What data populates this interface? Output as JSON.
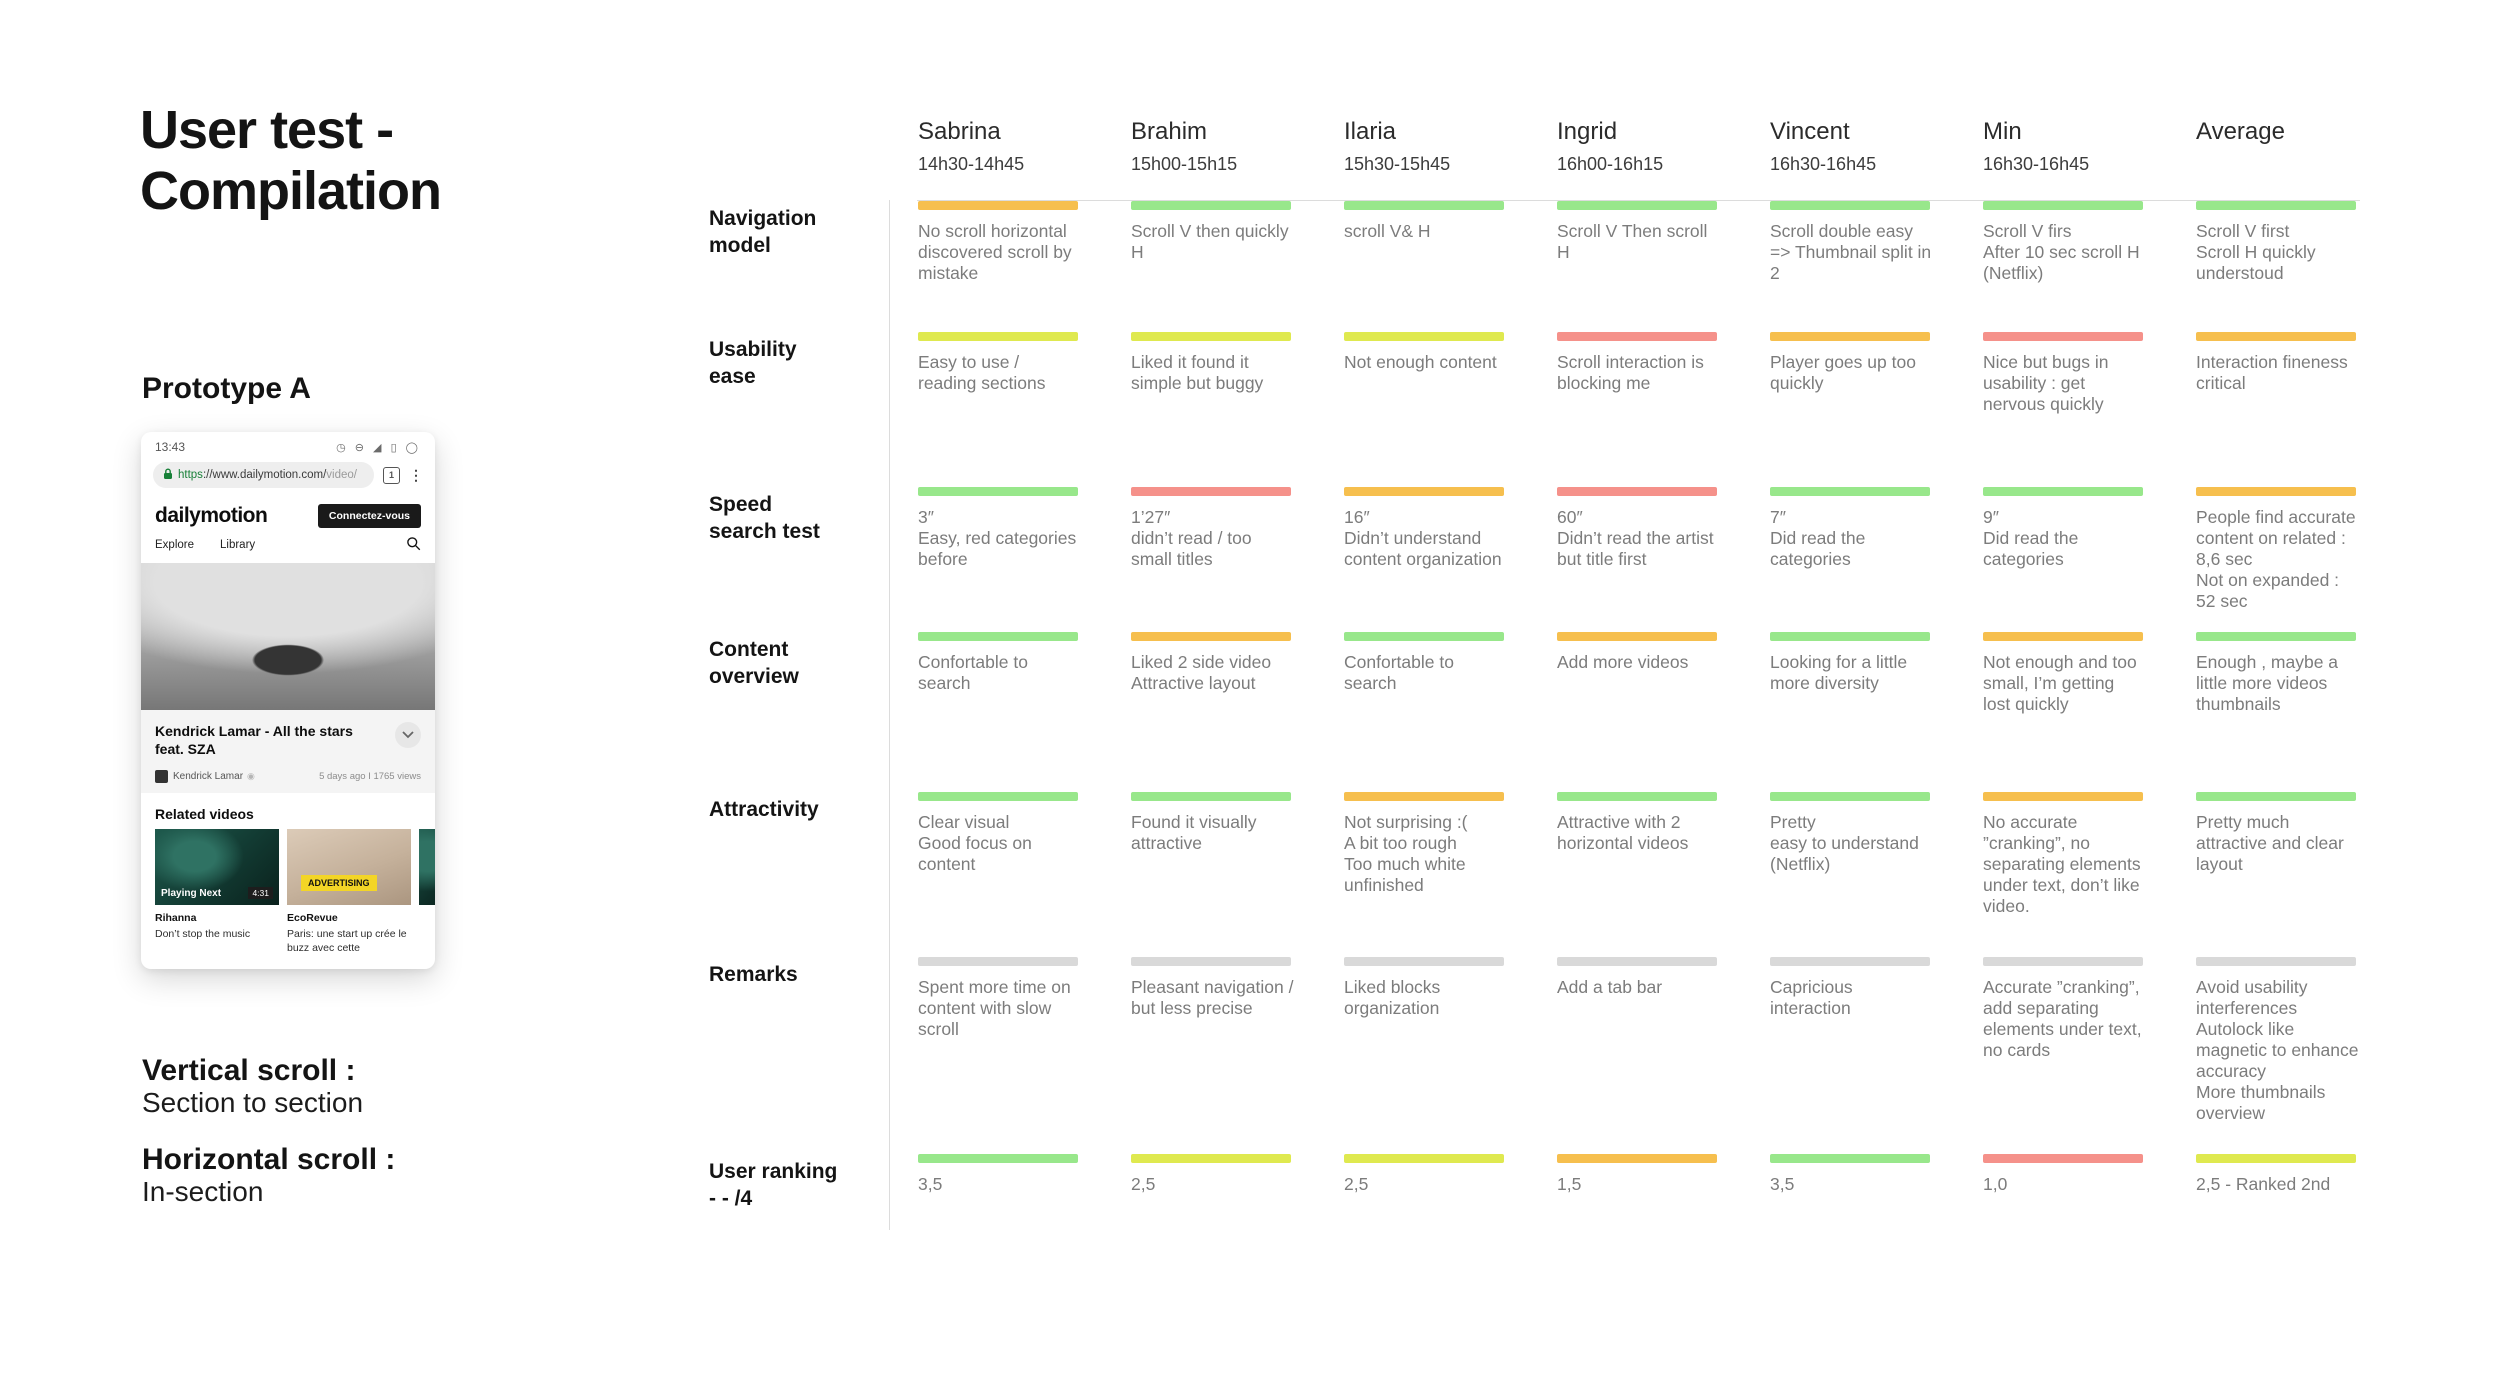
{
  "page": {
    "title": "User test -\nCompilation"
  },
  "left_panel": {
    "prototype_label": "Prototype A",
    "notes": [
      {
        "label": "Vertical scroll :",
        "value": "Section to section"
      },
      {
        "label": "Horizontal scroll :",
        "value": "In-section"
      }
    ],
    "phone": {
      "status_time": "13:43",
      "status_icons": "◷ ⊖ ◢ ▯ ◯",
      "url_scheme": "https",
      "url_host": "://www.dailymotion.com/",
      "url_path": "video/",
      "tab_count": "1",
      "menu_glyph": "⋮",
      "logo": "dailymotion",
      "login_button": "Connectez-vous",
      "nav": {
        "explore": "Explore",
        "library": "Library"
      },
      "video_title": "Kendrick Lamar - All the stars feat. SZA",
      "channel": "Kendrick Lamar",
      "meta": "5 days ago  I  1765 views",
      "related_heading": "Related videos",
      "related": [
        {
          "name": "Rihanna",
          "desc": "Don’t stop the music",
          "badge": "Playing Next",
          "duration": "4:31"
        },
        {
          "name": "EcoRevue",
          "desc": "Paris: une start up crée le buzz avec cette",
          "badge": "ADVERTISING",
          "duration": ""
        }
      ]
    }
  },
  "colors": {
    "green": "#98e78b",
    "yellow": "#dfe94f",
    "orange": "#f6bf4e",
    "red": "#f5918a",
    "gray": "#d9d9d9"
  },
  "table": {
    "columns": [
      {
        "name": "Sabrina",
        "time": "14h30-14h45"
      },
      {
        "name": "Brahim",
        "time": "15h00-15h15"
      },
      {
        "name": "Ilaria",
        "time": "15h30-15h45"
      },
      {
        "name": "Ingrid",
        "time": "16h00-16h15"
      },
      {
        "name": "Vincent",
        "time": "16h30-16h45"
      },
      {
        "name": "Min",
        "time": "16h30-16h45"
      },
      {
        "name": "Average",
        "time": ""
      }
    ],
    "rows": [
      {
        "label": "Navigation model",
        "cells": [
          {
            "color": "orange",
            "text": "No scroll horizontal discovered scroll by mistake"
          },
          {
            "color": "green",
            "text": "Scroll V then quickly H"
          },
          {
            "color": "green",
            "text": "scroll V& H"
          },
          {
            "color": "green",
            "text": "Scroll V Then scroll H"
          },
          {
            "color": "green",
            "text": "Scroll double easy\n=> Thumbnail split in 2"
          },
          {
            "color": "green",
            "text": "Scroll V firs\nAfter 10 sec scroll H (Netflix)"
          },
          {
            "color": "green",
            "text": "Scroll V first\nScroll H quickly understoud"
          }
        ]
      },
      {
        "label": "Usability ease",
        "cells": [
          {
            "color": "yellow",
            "text": "Easy to use / reading sections"
          },
          {
            "color": "yellow",
            "text": "Liked it found it simple but buggy"
          },
          {
            "color": "yellow",
            "text": "Not enough content"
          },
          {
            "color": "red",
            "text": "Scroll interaction is blocking me"
          },
          {
            "color": "orange",
            "text": "Player goes up too quickly"
          },
          {
            "color": "red",
            "text": "Nice but bugs in usability : get nervous quickly"
          },
          {
            "color": "orange",
            "text": "Interaction fineness critical"
          }
        ]
      },
      {
        "label": "Speed search test",
        "cells": [
          {
            "color": "green",
            "text": "3″\nEasy, red categories before"
          },
          {
            "color": "red",
            "text": "1’27″\ndidn’t read / too small titles"
          },
          {
            "color": "orange",
            "text": "16″\nDidn’t understand content organization"
          },
          {
            "color": "red",
            "text": "60″\nDidn’t read the artist but title first"
          },
          {
            "color": "green",
            "text": "7″\nDid read the categories"
          },
          {
            "color": "green",
            "text": "9″\nDid read the categories"
          },
          {
            "color": "orange",
            "text": "People find accurate content on related : 8,6 sec\nNot on expanded : 52 sec"
          }
        ]
      },
      {
        "label": "Content overview",
        "cells": [
          {
            "color": "green",
            "text": "Confortable to search"
          },
          {
            "color": "orange",
            "text": "Liked 2 side video\nAttractive layout"
          },
          {
            "color": "green",
            "text": "Confortable to search"
          },
          {
            "color": "orange",
            "text": "Add more videos"
          },
          {
            "color": "green",
            "text": "Looking for a little more diversity"
          },
          {
            "color": "orange",
            "text": "Not enough and too small, I’m getting lost quickly"
          },
          {
            "color": "green",
            "text": "Enough , maybe a little more videos thumbnails"
          }
        ]
      },
      {
        "label": "Attractivity",
        "cells": [
          {
            "color": "green",
            "text": "Clear visual\nGood focus on content"
          },
          {
            "color": "green",
            "text": "Found it visually attractive"
          },
          {
            "color": "orange",
            "text": "Not surprising :(\nA bit too rough\nToo much white unfinished"
          },
          {
            "color": "green",
            "text": "Attractive with 2 horizontal videos"
          },
          {
            "color": "green",
            "text": "Pretty\neasy to understand (Netflix)"
          },
          {
            "color": "orange",
            "text": "No accurate\n”cranking”, no separating elements under text, don’t like video."
          },
          {
            "color": "green",
            "text": "Pretty much attractive and clear layout"
          }
        ]
      },
      {
        "label": "Remarks",
        "cells": [
          {
            "color": "gray",
            "text": "Spent more time on content with slow scroll"
          },
          {
            "color": "gray",
            "text": "Pleasant navigation / but less precise"
          },
          {
            "color": "gray",
            "text": "Liked blocks organization"
          },
          {
            "color": "gray",
            "text": "Add a tab bar"
          },
          {
            "color": "gray",
            "text": "Capricious interaction"
          },
          {
            "color": "gray",
            "text": "Accurate ”cranking”, add separating elements under text, no cards"
          },
          {
            "color": "gray",
            "text": "Avoid usability interferences\nAutolock like magnetic to enhance accuracy\nMore thumbnails overview"
          }
        ]
      },
      {
        "label": "User ranking\n- - /4",
        "cells": [
          {
            "color": "green",
            "text": "3,5"
          },
          {
            "color": "yellow",
            "text": "2,5"
          },
          {
            "color": "yellow",
            "text": "2,5"
          },
          {
            "color": "orange",
            "text": "1,5"
          },
          {
            "color": "green",
            "text": "3,5"
          },
          {
            "color": "red",
            "text": "1,0"
          },
          {
            "color": "yellow",
            "text": "2,5 - Ranked 2nd"
          }
        ]
      }
    ]
  }
}
